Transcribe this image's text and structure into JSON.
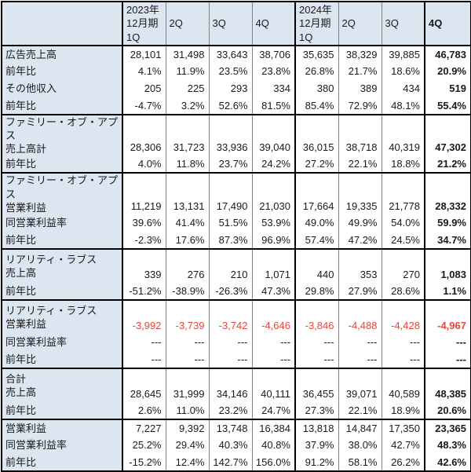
{
  "chart_data": {
    "type": "table",
    "title": "",
    "corner_label": "",
    "columns": [
      "2023年\n12月期\n1Q",
      "2Q",
      "3Q",
      "4Q",
      "2024年\n12月期\n1Q",
      "2Q",
      "3Q",
      "4Q"
    ],
    "sections": [
      {
        "rows": [
          {
            "label": "広告売上高",
            "values": [
              "28,101",
              "31,498",
              "33,643",
              "38,706",
              "35,635",
              "38,329",
              "39,885",
              "46,783"
            ]
          },
          {
            "label": "前年比",
            "values": [
              "4.1%",
              "11.9%",
              "23.5%",
              "23.8%",
              "26.8%",
              "21.7%",
              "18.6%",
              "20.9%"
            ]
          },
          {
            "label": "その他収入",
            "values": [
              "205",
              "225",
              "293",
              "334",
              "380",
              "389",
              "434",
              "519"
            ]
          },
          {
            "label": "前年比",
            "values": [
              "-4.7%",
              "3.2%",
              "52.6%",
              "81.5%",
              "85.4%",
              "72.9%",
              "48.1%",
              "55.4%"
            ]
          }
        ]
      },
      {
        "rows": [
          {
            "label": "ファミリー・オブ・アプス\n売上高計",
            "two_line": true,
            "values": [
              "28,306",
              "31,723",
              "33,936",
              "39,040",
              "36,015",
              "38,718",
              "40,319",
              "47,302"
            ]
          },
          {
            "label": "前年比",
            "values": [
              "4.0%",
              "11.8%",
              "23.7%",
              "24.2%",
              "27.2%",
              "22.1%",
              "18.8%",
              "21.2%"
            ]
          }
        ]
      },
      {
        "rows": [
          {
            "label": "ファミリー・オブ・アプス\n営業利益",
            "two_line": true,
            "values": [
              "11,219",
              "13,131",
              "17,490",
              "21,030",
              "17,664",
              "19,335",
              "21,778",
              "28,332"
            ]
          },
          {
            "label": "同営業利益率",
            "values": [
              "39.6%",
              "41.4%",
              "51.5%",
              "53.9%",
              "49.0%",
              "49.9%",
              "54.0%",
              "59.9%"
            ]
          },
          {
            "label": "前年比",
            "values": [
              "-2.3%",
              "17.6%",
              "87.3%",
              "96.9%",
              "57.4%",
              "47.2%",
              "24.5%",
              "34.7%"
            ]
          }
        ]
      },
      {
        "rows": [
          {
            "label": "リアリティ・ラブス\n売上高",
            "two_line": true,
            "values": [
              "339",
              "276",
              "210",
              "1,071",
              "440",
              "353",
              "270",
              "1,083"
            ]
          },
          {
            "label": "前年比",
            "values": [
              "-51.2%",
              "-38.9%",
              "-26.3%",
              "47.3%",
              "29.8%",
              "27.9%",
              "28.6%",
              "1.1%"
            ]
          }
        ]
      },
      {
        "rows": [
          {
            "label": "リアリティ・ラブス\n営業利益",
            "two_line": true,
            "style": "negative",
            "values": [
              "-3,992",
              "-3,739",
              "-3,742",
              "-4,646",
              "-3,846",
              "-4,488",
              "-4,428",
              "-4,967"
            ]
          },
          {
            "label": "同営業利益率",
            "values": [
              "---",
              "---",
              "---",
              "---",
              "---",
              "---",
              "---",
              "---"
            ]
          },
          {
            "label": "前年比",
            "values": [
              "---",
              "---",
              "---",
              "---",
              "---",
              "---",
              "---",
              "---"
            ]
          }
        ]
      },
      {
        "rows": [
          {
            "label": "合計\n売上高",
            "two_line": true,
            "values": [
              "28,645",
              "31,999",
              "34,146",
              "40,111",
              "36,455",
              "39,071",
              "40,589",
              "48,385"
            ]
          },
          {
            "label": "前年比",
            "values": [
              "2.6%",
              "11.0%",
              "23.2%",
              "24.7%",
              "27.3%",
              "22.1%",
              "18.9%",
              "20.6%"
            ]
          }
        ]
      },
      {
        "rows": [
          {
            "label": "営業利益",
            "values": [
              "7,227",
              "9,392",
              "13,748",
              "16,384",
              "13,818",
              "14,847",
              "17,350",
              "23,365"
            ]
          },
          {
            "label": "同営業利益率",
            "values": [
              "25.2%",
              "29.4%",
              "40.3%",
              "40.8%",
              "37.9%",
              "38.0%",
              "42.7%",
              "48.3%"
            ]
          },
          {
            "label": "前年比",
            "values": [
              "-15.2%",
              "12.4%",
              "142.7%",
              "156.0%",
              "91.2%",
              "58.1%",
              "26.2%",
              "42.6%"
            ]
          }
        ]
      }
    ],
    "layout": {
      "header_bg": "#dce6f1",
      "label_col_bg": "#dce6f1",
      "thin_border_color": "#808080",
      "thick_border_color": "#000000",
      "negative_color": "#e8463c",
      "bold_column_index": 7,
      "thick_divider_before_column_indexes": [
        0,
        4,
        7
      ]
    }
  }
}
